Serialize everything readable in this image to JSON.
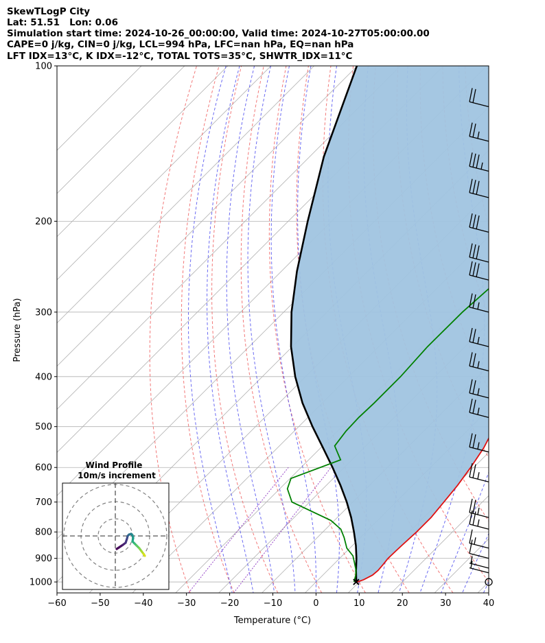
{
  "header": {
    "lines": [
      "SkewTLogP City",
      "Lat: 51.51   Lon: 0.06",
      "Simulation start time: 2024-10-26_00:00:00, Valid time: 2024-10-27T05:00:00.00",
      "CAPE=0 j/kg, CIN=0 j/kg, LCL=994 hPa, LFC=nan hPa, EQ=nan hPa",
      "LFT IDX=13$^\\circ$C, K IDX=-12$^\\circ$C, TOTAL TOTS=35$^\\circ$C, SHWTR_IDX=11$^\\circ$C"
    ],
    "display_lines": [
      "SkewTLogP City",
      "Lat: 51.51   Lon: 0.06",
      "Simulation start time: 2024-10-26_00:00:00, Valid time: 2024-10-27T05:00:00.00",
      "CAPE=0 j/kg, CIN=0 j/kg, LCL=994 hPa, LFC=nan hPa, EQ=nan hPa",
      "LFT IDX=13°C, K IDX=-12°C, TOTAL TOTS=35°C, SHWTR_IDX=11°C"
    ]
  },
  "chart_data": [
    {
      "type": "line",
      "subtype": "skewT-logP",
      "xlabel": "Temperature (°C)",
      "ylabel": "Pressure (hPa)",
      "xlim": [
        -60,
        40
      ],
      "ylim": [
        1050,
        100
      ],
      "yscale": "log",
      "grid": true,
      "x_ticks": [
        "−60",
        "−50",
        "−40",
        "−30",
        "−20",
        "−10",
        "0",
        "10",
        "20",
        "30",
        "40"
      ],
      "y_ticks": [
        "100",
        "200",
        "300",
        "400",
        "500",
        "600",
        "700",
        "800",
        "900",
        "1000"
      ],
      "series": [
        {
          "role": "temperature",
          "color": "#e01010",
          "pressure_hPa": [
            1000,
            990,
            970,
            950,
            925,
            900,
            870,
            850,
            800,
            750,
            700,
            650,
            600,
            550,
            500,
            450,
            400,
            350,
            300,
            280,
            260,
            240,
            220,
            200,
            180,
            170,
            160,
            150,
            140,
            130,
            120,
            110,
            105,
            100
          ],
          "temperature_C": [
            9.5,
            10.5,
            11.5,
            11.7,
            11.5,
            11.2,
            11.3,
            11.4,
            11.7,
            11.7,
            11.1,
            10.4,
            9.3,
            7.8,
            5.4,
            2.2,
            -1.3,
            -4.9,
            -8.4,
            -9.3,
            -9.5,
            -9.0,
            -8.4,
            -7.1,
            -5.5,
            -4.0,
            -2.8,
            -2.0,
            -0.5,
            1.3,
            3.8,
            6.0,
            6.7,
            7.3
          ]
        },
        {
          "role": "dewpoint",
          "color": "#008000",
          "pressure_hPa": [
            1000,
            970,
            950,
            920,
            890,
            860,
            820,
            790,
            760,
            700,
            660,
            630,
            580,
            545,
            510,
            480,
            450,
            400,
            350,
            300,
            250,
            200,
            185,
            175,
            165,
            160,
            150,
            140,
            130,
            120,
            110,
            100
          ],
          "temperature_C": [
            8.8,
            7.6,
            6.6,
            4.6,
            2.5,
            -0.7,
            -3.8,
            -6.5,
            -10.8,
            -24.1,
            -28.2,
            -29.8,
            -22.6,
            -27.2,
            -28.0,
            -28.2,
            -28.0,
            -28.0,
            -28.7,
            -28.6,
            -27.4,
            -25.4,
            -25.5,
            -26.2,
            -26.5,
            -28.7,
            -29.4,
            -29.6,
            -28.3,
            -25.5,
            -21.0,
            -17.4
          ]
        },
        {
          "role": "parcel_profile",
          "color": "#000000",
          "pressure_hPa": [
            1000,
            990,
            950,
            900,
            850,
            800,
            750,
            700,
            650,
            600,
            550,
            500,
            450,
            400,
            350,
            300,
            250,
            200,
            150,
            100
          ],
          "temperature_C": [
            9.3,
            8.8,
            6.6,
            3.9,
            0.8,
            -2.8,
            -6.8,
            -11.4,
            -16.7,
            -22.7,
            -29.4,
            -36.8,
            -44.6,
            -52.4,
            -60.3,
            -68.2,
            -76.4,
            -85.5,
            -96.7,
            -110.1
          ]
        }
      ],
      "shaded_region": {
        "between": [
          "temperature",
          "parcel_profile"
        ],
        "color": "#a0c4e0"
      },
      "background_lines": {
        "isotherms_color": "#b0b0b0",
        "dry_adiabats_color": "#f06060",
        "moist_adiabats_color": "#5050f0",
        "mixing_ratio_color": "#8a30c0"
      },
      "wind_barbs": {
        "color": "#000000",
        "pressure_hPa": [
          1000,
          960,
          940,
          900,
          860,
          790,
          750,
          640,
          560,
          480,
          440,
          390,
          350,
          300,
          260,
          240,
          210,
          180,
          160,
          140,
          120
        ],
        "speed_kt": [
          0,
          6,
          8,
          12,
          15,
          25,
          25,
          25,
          25,
          25,
          25,
          25,
          25,
          25,
          30,
          30,
          30,
          30,
          35,
          25,
          20
        ]
      }
    },
    {
      "type": "scatter",
      "subtype": "hodograph",
      "title": "Wind Profile",
      "subtitle": "10m/s increment",
      "rings_ms": [
        10,
        20,
        30
      ],
      "colormap": "viridis"
    }
  ]
}
